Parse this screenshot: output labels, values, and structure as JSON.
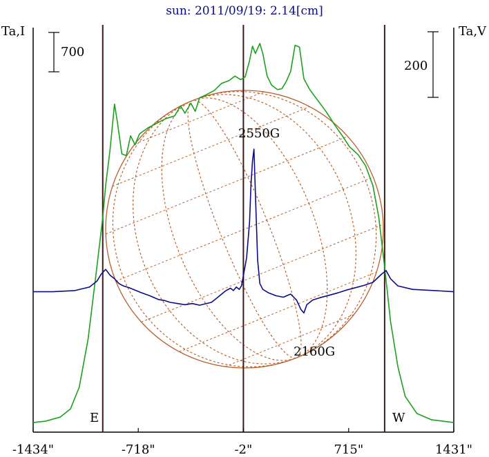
{
  "chart_data": {
    "type": "line",
    "title": "sun: 2011/09/19: 2.14[cm]",
    "left_axis_label": "Ta,I",
    "right_axis_label": "Ta,V",
    "left_scale_bar": "700",
    "right_scale_bar": "200",
    "xticks": [
      "-1434\"",
      "-718\"",
      "-2\"",
      "715\"",
      "1431\""
    ],
    "xlim": [
      -1434,
      1431
    ],
    "vertical_lines_arcsec": [
      -960,
      -2,
      960
    ],
    "limb_labels": {
      "east": "E",
      "west": "W"
    },
    "annotations": [
      {
        "text": "2550G",
        "x": 120
      },
      {
        "text": "2160G",
        "x": 500
      }
    ],
    "colors": {
      "intensity": "#1aa01a",
      "polarization": "#0a0a8a",
      "sun_disk": "#b8602a",
      "axis": "#000000",
      "vertical_lines": "#3a1a1a"
    },
    "series": [
      {
        "key": "I",
        "points": [
          [
            -1434,
            30
          ],
          [
            -1350,
            45
          ],
          [
            -1250,
            90
          ],
          [
            -1180,
            180
          ],
          [
            -1120,
            420
          ],
          [
            -1060,
            950
          ],
          [
            -1000,
            1750
          ],
          [
            -960,
            2300
          ],
          [
            -940,
            2650
          ],
          [
            -910,
            3050
          ],
          [
            -880,
            3550
          ],
          [
            -860,
            3350
          ],
          [
            -830,
            3000
          ],
          [
            -800,
            2980
          ],
          [
            -770,
            3200
          ],
          [
            -740,
            3100
          ],
          [
            -710,
            3220
          ],
          [
            -650,
            3290
          ],
          [
            -590,
            3340
          ],
          [
            -530,
            3390
          ],
          [
            -470,
            3420
          ],
          [
            -430,
            3530
          ],
          [
            -400,
            3450
          ],
          [
            -360,
            3560
          ],
          [
            -330,
            3470
          ],
          [
            -300,
            3620
          ],
          [
            -260,
            3650
          ],
          [
            -200,
            3700
          ],
          [
            -150,
            3780
          ],
          [
            -100,
            3810
          ],
          [
            -60,
            3860
          ],
          [
            -20,
            3820
          ],
          [
            10,
            3850
          ],
          [
            40,
            4030
          ],
          [
            60,
            4190
          ],
          [
            80,
            4110
          ],
          [
            110,
            4220
          ],
          [
            130,
            4110
          ],
          [
            160,
            3860
          ],
          [
            190,
            3760
          ],
          [
            230,
            3710
          ],
          [
            260,
            3720
          ],
          [
            290,
            3800
          ],
          [
            320,
            3910
          ],
          [
            350,
            4200
          ],
          [
            380,
            4180
          ],
          [
            410,
            3830
          ],
          [
            450,
            3710
          ],
          [
            500,
            3600
          ],
          [
            560,
            3470
          ],
          [
            620,
            3320
          ],
          [
            680,
            3180
          ],
          [
            720,
            3080
          ],
          [
            780,
            2990
          ],
          [
            830,
            2870
          ],
          [
            880,
            2650
          ],
          [
            920,
            2300
          ],
          [
            960,
            1750
          ],
          [
            1000,
            1150
          ],
          [
            1050,
            650
          ],
          [
            1100,
            320
          ],
          [
            1180,
            130
          ],
          [
            1280,
            60
          ],
          [
            1431,
            30
          ]
        ]
      },
      {
        "key": "V",
        "points": [
          [
            -1434,
            45
          ],
          [
            -1300,
            45
          ],
          [
            -1150,
            50
          ],
          [
            -1050,
            65
          ],
          [
            -1000,
            90
          ],
          [
            -970,
            120
          ],
          [
            -940,
            140
          ],
          [
            -910,
            115
          ],
          [
            -880,
            100
          ],
          [
            -850,
            80
          ],
          [
            -820,
            70
          ],
          [
            -780,
            62
          ],
          [
            -740,
            52
          ],
          [
            -700,
            42
          ],
          [
            -640,
            28
          ],
          [
            -580,
            12
          ],
          [
            -540,
            8
          ],
          [
            -500,
            0
          ],
          [
            -450,
            -5
          ],
          [
            -400,
            -10
          ],
          [
            -350,
            -5
          ],
          [
            -300,
            -12
          ],
          [
            -260,
            -6
          ],
          [
            -220,
            0
          ],
          [
            -180,
            20
          ],
          [
            -150,
            35
          ],
          [
            -120,
            50
          ],
          [
            -90,
            60
          ],
          [
            -70,
            50
          ],
          [
            -50,
            65
          ],
          [
            -30,
            55
          ],
          [
            -15,
            70
          ],
          [
            0,
            120
          ],
          [
            20,
            190
          ],
          [
            40,
            340
          ],
          [
            50,
            500
          ],
          [
            60,
            600
          ],
          [
            70,
            650
          ],
          [
            80,
            460
          ],
          [
            95,
            180
          ],
          [
            110,
            80
          ],
          [
            130,
            55
          ],
          [
            170,
            40
          ],
          [
            220,
            28
          ],
          [
            270,
            22
          ],
          [
            320,
            35
          ],
          [
            360,
            10
          ],
          [
            390,
            -30
          ],
          [
            410,
            -45
          ],
          [
            430,
            -10
          ],
          [
            470,
            10
          ],
          [
            520,
            20
          ],
          [
            580,
            30
          ],
          [
            640,
            40
          ],
          [
            700,
            52
          ],
          [
            760,
            62
          ],
          [
            820,
            72
          ],
          [
            880,
            85
          ],
          [
            940,
            120
          ],
          [
            970,
            135
          ],
          [
            1000,
            100
          ],
          [
            1050,
            70
          ],
          [
            1150,
            55
          ],
          [
            1300,
            50
          ],
          [
            1431,
            45
          ]
        ]
      }
    ]
  }
}
